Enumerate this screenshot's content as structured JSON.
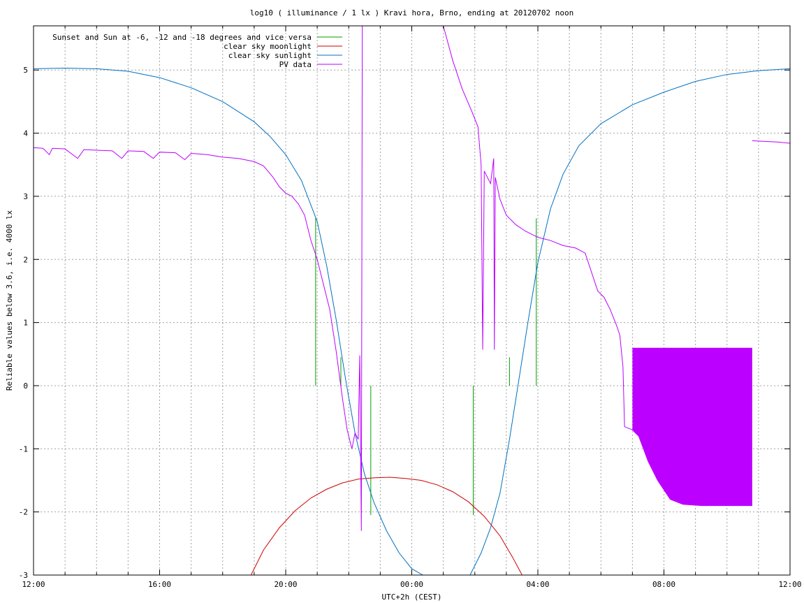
{
  "chart_data": {
    "type": "line",
    "title": "log10 ( illuminance / 1 lx ) Kravi hora, Brno, ending at 20120702 noon",
    "xlabel": "UTC+2h (CEST)",
    "ylabel": "Reliable values below 3.6, i.e. 4000 lx",
    "xlim": [
      12,
      36
    ],
    "ylim": [
      -3,
      5.7
    ],
    "grid": true,
    "legend_position": "top-left",
    "x_ticks": [
      {
        "value": 12,
        "label": "12:00"
      },
      {
        "value": 16,
        "label": "16:00"
      },
      {
        "value": 20,
        "label": "20:00"
      },
      {
        "value": 24,
        "label": "00:00"
      },
      {
        "value": 28,
        "label": "04:00"
      },
      {
        "value": 32,
        "label": "08:00"
      },
      {
        "value": 36,
        "label": "12:00"
      }
    ],
    "y_ticks": [
      {
        "value": -3,
        "label": "-3"
      },
      {
        "value": -2,
        "label": "-2"
      },
      {
        "value": -1,
        "label": "-1"
      },
      {
        "value": 0,
        "label": "0"
      },
      {
        "value": 1,
        "label": "1"
      },
      {
        "value": 2,
        "label": "2"
      },
      {
        "value": 3,
        "label": "3"
      },
      {
        "value": 4,
        "label": "4"
      },
      {
        "value": 5,
        "label": "5"
      }
    ],
    "series": [
      {
        "name": "Sunset and Sun at -6, -12 and -18 degrees and vice versa",
        "style": "impulses",
        "color": "#00a000",
        "points": [
          {
            "x": 20.95,
            "y": 2.65
          },
          {
            "x": 21.75,
            "y": 0.45
          },
          {
            "x": 22.7,
            "y": -2.05
          },
          {
            "x": 25.95,
            "y": -2.05
          },
          {
            "x": 27.1,
            "y": 0.45
          },
          {
            "x": 27.95,
            "y": 2.65
          }
        ]
      },
      {
        "name": "clear sky moonlight",
        "style": "line",
        "color": "#cc0000",
        "points": [
          {
            "x": 18.9,
            "y": -3.0
          },
          {
            "x": 19.3,
            "y": -2.6
          },
          {
            "x": 19.8,
            "y": -2.25
          },
          {
            "x": 20.3,
            "y": -1.98
          },
          {
            "x": 20.8,
            "y": -1.78
          },
          {
            "x": 21.3,
            "y": -1.64
          },
          {
            "x": 21.8,
            "y": -1.54
          },
          {
            "x": 22.3,
            "y": -1.48
          },
          {
            "x": 22.8,
            "y": -1.46
          },
          {
            "x": 23.3,
            "y": -1.45
          },
          {
            "x": 23.8,
            "y": -1.47
          },
          {
            "x": 24.3,
            "y": -1.5
          },
          {
            "x": 24.8,
            "y": -1.57
          },
          {
            "x": 25.3,
            "y": -1.68
          },
          {
            "x": 25.8,
            "y": -1.84
          },
          {
            "x": 26.3,
            "y": -2.07
          },
          {
            "x": 26.8,
            "y": -2.38
          },
          {
            "x": 27.2,
            "y": -2.72
          },
          {
            "x": 27.5,
            "y": -3.0
          }
        ]
      },
      {
        "name": "clear sky sunlight",
        "style": "line",
        "color": "#0070c0",
        "points": [
          {
            "x": 12.0,
            "y": 5.02
          },
          {
            "x": 13.0,
            "y": 5.03
          },
          {
            "x": 14.0,
            "y": 5.02
          },
          {
            "x": 15.0,
            "y": 4.98
          },
          {
            "x": 16.0,
            "y": 4.88
          },
          {
            "x": 17.0,
            "y": 4.72
          },
          {
            "x": 18.0,
            "y": 4.5
          },
          {
            "x": 19.0,
            "y": 4.18
          },
          {
            "x": 19.5,
            "y": 3.95
          },
          {
            "x": 20.0,
            "y": 3.66
          },
          {
            "x": 20.5,
            "y": 3.25
          },
          {
            "x": 21.0,
            "y": 2.6
          },
          {
            "x": 21.3,
            "y": 1.9
          },
          {
            "x": 21.6,
            "y": 1.05
          },
          {
            "x": 21.9,
            "y": 0.1
          },
          {
            "x": 22.2,
            "y": -0.75
          },
          {
            "x": 22.5,
            "y": -1.4
          },
          {
            "x": 22.8,
            "y": -1.85
          },
          {
            "x": 23.2,
            "y": -2.3
          },
          {
            "x": 23.6,
            "y": -2.65
          },
          {
            "x": 24.0,
            "y": -2.9
          },
          {
            "x": 24.35,
            "y": -3.0
          },
          {
            "x": 25.85,
            "y": -3.0
          },
          {
            "x": 26.2,
            "y": -2.65
          },
          {
            "x": 26.5,
            "y": -2.25
          },
          {
            "x": 26.8,
            "y": -1.7
          },
          {
            "x": 27.1,
            "y": -0.85
          },
          {
            "x": 27.4,
            "y": 0.1
          },
          {
            "x": 27.7,
            "y": 1.05
          },
          {
            "x": 28.0,
            "y": 1.95
          },
          {
            "x": 28.4,
            "y": 2.8
          },
          {
            "x": 28.8,
            "y": 3.35
          },
          {
            "x": 29.3,
            "y": 3.8
          },
          {
            "x": 30.0,
            "y": 4.15
          },
          {
            "x": 31.0,
            "y": 4.45
          },
          {
            "x": 32.0,
            "y": 4.65
          },
          {
            "x": 33.0,
            "y": 4.82
          },
          {
            "x": 34.0,
            "y": 4.93
          },
          {
            "x": 35.0,
            "y": 4.99
          },
          {
            "x": 36.0,
            "y": 5.02
          }
        ]
      },
      {
        "name": "PV data",
        "style": "line",
        "color": "#bb00ff",
        "segments": [
          [
            {
              "x": 12.0,
              "y": 3.77
            },
            {
              "x": 12.3,
              "y": 3.76
            },
            {
              "x": 12.5,
              "y": 3.66
            },
            {
              "x": 12.6,
              "y": 3.76
            },
            {
              "x": 13.0,
              "y": 3.75
            },
            {
              "x": 13.4,
              "y": 3.6
            },
            {
              "x": 13.6,
              "y": 3.74
            },
            {
              "x": 14.0,
              "y": 3.73
            },
            {
              "x": 14.5,
              "y": 3.72
            },
            {
              "x": 14.8,
              "y": 3.6
            },
            {
              "x": 15.0,
              "y": 3.72
            },
            {
              "x": 15.5,
              "y": 3.71
            },
            {
              "x": 15.8,
              "y": 3.6
            },
            {
              "x": 16.0,
              "y": 3.7
            },
            {
              "x": 16.5,
              "y": 3.69
            },
            {
              "x": 16.8,
              "y": 3.58
            },
            {
              "x": 17.0,
              "y": 3.68
            },
            {
              "x": 17.5,
              "y": 3.66
            },
            {
              "x": 18.0,
              "y": 3.62
            },
            {
              "x": 18.5,
              "y": 3.6
            },
            {
              "x": 19.0,
              "y": 3.55
            },
            {
              "x": 19.3,
              "y": 3.48
            },
            {
              "x": 19.6,
              "y": 3.3
            },
            {
              "x": 19.8,
              "y": 3.15
            },
            {
              "x": 20.0,
              "y": 3.05
            },
            {
              "x": 20.2,
              "y": 3.0
            },
            {
              "x": 20.4,
              "y": 2.88
            },
            {
              "x": 20.6,
              "y": 2.7
            },
            {
              "x": 20.8,
              "y": 2.3
            },
            {
              "x": 21.0,
              "y": 2.0
            },
            {
              "x": 21.2,
              "y": 1.6
            },
            {
              "x": 21.4,
              "y": 1.2
            },
            {
              "x": 21.6,
              "y": 0.55
            },
            {
              "x": 21.8,
              "y": -0.2
            },
            {
              "x": 21.95,
              "y": -0.7
            },
            {
              "x": 22.1,
              "y": -1.0
            },
            {
              "x": 22.2,
              "y": -0.75
            },
            {
              "x": 22.3,
              "y": -0.85
            },
            {
              "x": 22.35,
              "y": 0.48
            },
            {
              "x": 22.4,
              "y": -2.3
            },
            {
              "x": 22.43,
              "y": 5.7
            }
          ],
          [
            {
              "x": 25.0,
              "y": 5.7
            },
            {
              "x": 25.3,
              "y": 5.15
            },
            {
              "x": 25.6,
              "y": 4.7
            },
            {
              "x": 25.9,
              "y": 4.35
            },
            {
              "x": 26.1,
              "y": 4.1
            },
            {
              "x": 26.2,
              "y": 3.5
            },
            {
              "x": 26.25,
              "y": 0.57
            },
            {
              "x": 26.3,
              "y": 3.4
            },
            {
              "x": 26.5,
              "y": 3.2
            },
            {
              "x": 26.6,
              "y": 3.6
            },
            {
              "x": 26.62,
              "y": 0.57
            },
            {
              "x": 26.65,
              "y": 3.3
            },
            {
              "x": 26.8,
              "y": 2.95
            },
            {
              "x": 27.0,
              "y": 2.7
            },
            {
              "x": 27.3,
              "y": 2.55
            },
            {
              "x": 27.6,
              "y": 2.45
            },
            {
              "x": 28.0,
              "y": 2.35
            },
            {
              "x": 28.4,
              "y": 2.3
            },
            {
              "x": 28.8,
              "y": 2.22
            },
            {
              "x": 29.2,
              "y": 2.18
            },
            {
              "x": 29.5,
              "y": 2.1
            },
            {
              "x": 29.7,
              "y": 1.8
            },
            {
              "x": 29.9,
              "y": 1.5
            },
            {
              "x": 30.1,
              "y": 1.4
            },
            {
              "x": 30.3,
              "y": 1.2
            },
            {
              "x": 30.5,
              "y": 0.95
            },
            {
              "x": 30.6,
              "y": 0.8
            },
            {
              "x": 30.65,
              "y": 0.55
            },
            {
              "x": 30.7,
              "y": 0.3
            },
            {
              "x": 30.75,
              "y": -0.65
            },
            {
              "x": 31.0,
              "y": -0.7
            },
            {
              "x": 31.2,
              "y": -0.8
            },
            {
              "x": 31.5,
              "y": -1.2
            },
            {
              "x": 31.8,
              "y": -1.5
            },
            {
              "x": 32.2,
              "y": -1.8
            },
            {
              "x": 32.6,
              "y": -1.88
            },
            {
              "x": 33.2,
              "y": -1.9
            },
            {
              "x": 34.0,
              "y": -1.9
            },
            {
              "x": 34.8,
              "y": -1.9
            }
          ],
          [
            {
              "x": 34.8,
              "y": 3.88
            },
            {
              "x": 35.2,
              "y": 3.87
            },
            {
              "x": 35.6,
              "y": 3.86
            },
            {
              "x": 36.0,
              "y": 3.84
            }
          ]
        ],
        "band": {
          "x_start": 31.0,
          "x_end": 34.8,
          "y_top": 0.6
        }
      }
    ]
  }
}
